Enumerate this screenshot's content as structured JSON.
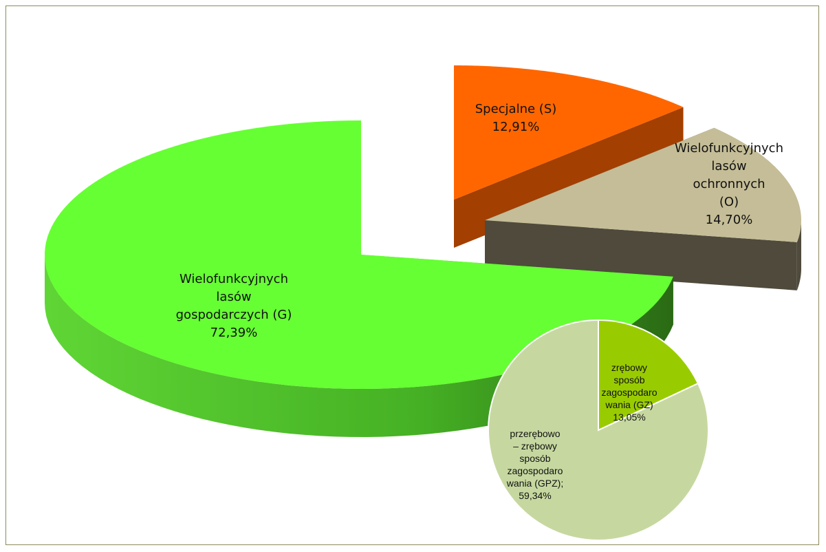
{
  "chart_data": [
    {
      "type": "pie",
      "categories": [
        "Specjalne (S)",
        "Wielofunkcyjnych\nlasów ochronnych\n(O)",
        "Wielofunkcyjnych\nlasów\ngospodarczych (G)"
      ],
      "values": [
        12.91,
        14.7,
        72.39
      ],
      "value_labels": [
        "12,91%",
        "14,70%",
        "72,39%"
      ],
      "colors": [
        "#ff6600",
        "#c4bd97",
        "#66ff33"
      ],
      "side_colors": [
        "#a33f00",
        "#4f4a3c",
        "#3c9a1e"
      ]
    },
    {
      "type": "pie",
      "categories": [
        "zrębowy\nsposób\nzagospodaro\nwania (GZ)",
        "przerębowo\n– zrębowy\nsposób\nzagospodaro\nwania (GPZ);"
      ],
      "values": [
        13.05,
        59.34
      ],
      "value_labels": [
        "13,05%",
        "59,34%"
      ],
      "colors": [
        "#99cc00",
        "#c6d8a0"
      ]
    }
  ]
}
